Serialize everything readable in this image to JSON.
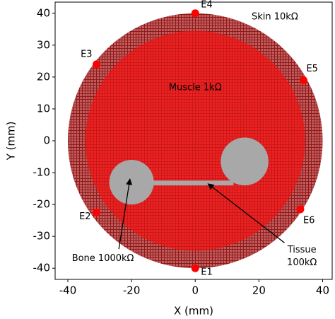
{
  "chart_data": {
    "type": "scatter",
    "xlabel": "X (mm)",
    "ylabel": "Y (mm)",
    "xlim": [
      -44,
      43
    ],
    "ylim": [
      -43.5,
      43.5
    ],
    "xticks": [
      -40,
      -20,
      0,
      20,
      40
    ],
    "yticks": [
      -40,
      -30,
      -20,
      -10,
      0,
      10,
      20,
      30,
      40
    ],
    "regions": [
      {
        "shape": "circle",
        "cx": 0,
        "cy": 0,
        "r": 40,
        "color": "#c45a5a",
        "hatch": "#8a1c1c"
      },
      {
        "shape": "circle",
        "cx": 0,
        "cy": 0,
        "r": 34.5,
        "color": "#ee2222",
        "hatch": "#c81818"
      },
      {
        "shape": "circle",
        "cx": -20,
        "cy": -13,
        "r": 7,
        "color": "#a8a8a8"
      },
      {
        "shape": "circle",
        "cx": 15.5,
        "cy": -6.5,
        "r": 7.5,
        "color": "#a8a8a8"
      },
      {
        "shape": "rect",
        "x0": -20,
        "x1": 12,
        "y0": -14,
        "y1": -12.5,
        "color": "#a8a8a8"
      }
    ],
    "points": {
      "labels": [
        "E1",
        "E2",
        "E3",
        "E4",
        "E5",
        "E6"
      ],
      "x": [
        0,
        -31,
        -31,
        0,
        34,
        33
      ],
      "y": [
        -40,
        -22.5,
        24,
        40,
        19,
        -21.5
      ],
      "color": "#ff0000"
    },
    "annotations": [
      {
        "lines": [
          "Skin 10kΩ"
        ],
        "x": 25,
        "y": 38.8
      },
      {
        "lines": [
          "Muscle 1kΩ"
        ],
        "x": 0,
        "y": 16.6
      },
      {
        "lines": [
          "Bone 1000kΩ"
        ],
        "x": -29,
        "y": -36.9,
        "arrow_from": [
          -24,
          -34
        ],
        "arrow_to": [
          -20.5,
          -12
        ]
      },
      {
        "lines": [
          "Tissue",
          "100kΩ"
        ],
        "x": 33.5,
        "y": -34.3,
        "arrow_from": [
          28,
          -32
        ],
        "arrow_to": [
          4,
          -13.5
        ]
      }
    ]
  }
}
